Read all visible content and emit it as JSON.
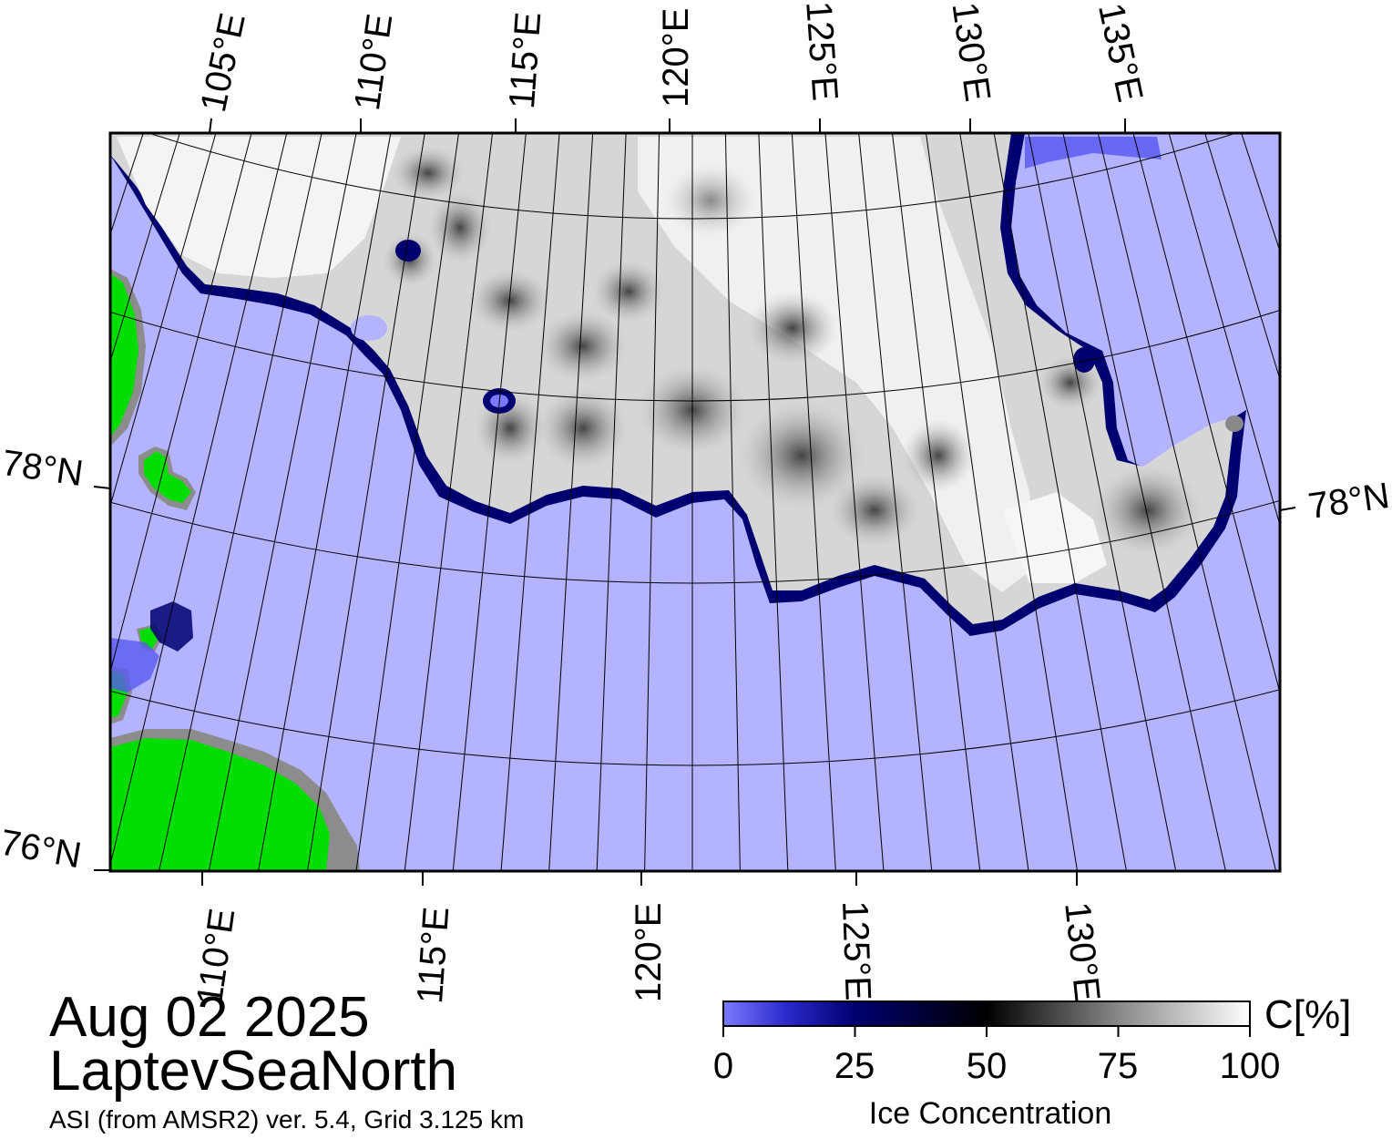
{
  "map": {
    "top_lon_labels": [
      "105°E",
      "110°E",
      "115°E",
      "120°E",
      "125°E",
      "130°E",
      "135°E"
    ],
    "bottom_lon_labels": [
      "110°E",
      "115°E",
      "120°E",
      "125°E",
      "130°E"
    ],
    "left_lat_labels": [
      "78°N",
      "76°N"
    ],
    "right_lat_labels": [
      "78°N"
    ],
    "colors": {
      "open_water": "#b3b3ff",
      "land": "#00dd00",
      "land_mask": "#8c8c8c",
      "ice_high": "#ffffff",
      "ice_mid": "#808080",
      "ice_edge": "#000060",
      "frame": "#000000",
      "graticule": "#000000"
    }
  },
  "footer": {
    "date": "Aug 02 2025",
    "region": "LaptevSeaNorth",
    "source": "ASI (from AMSR2) ver. 5.4,  Grid 3.125 km"
  },
  "colorbar": {
    "ticks": [
      "0",
      "25",
      "50",
      "75",
      "100"
    ],
    "unit": "C[%]",
    "title": "Ice Concentration",
    "range": [
      0,
      100
    ],
    "stops": [
      {
        "value": 0,
        "color": "#7a7aff"
      },
      {
        "value": 25,
        "color": "#000070"
      },
      {
        "value": 50,
        "color": "#000000"
      },
      {
        "value": 75,
        "color": "#888888"
      },
      {
        "value": 100,
        "color": "#ffffff"
      }
    ]
  }
}
